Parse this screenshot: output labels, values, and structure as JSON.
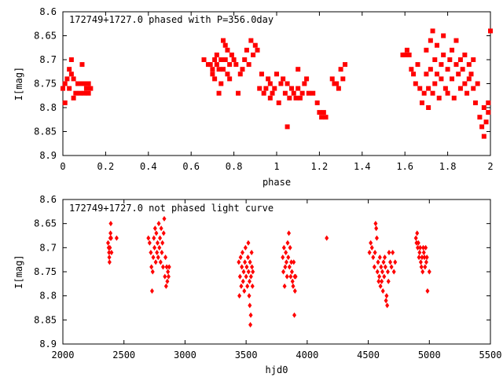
{
  "chart_data": [
    {
      "type": "scatter",
      "title": "172749+1727.0 phased with P=356.0day",
      "xlabel": "phase",
      "ylabel": "I[mag]",
      "xlim": [
        0,
        2
      ],
      "ylim": [
        8.6,
        8.9
      ],
      "y_inverted": true,
      "xticks": [
        0,
        0.2,
        0.4,
        0.6,
        0.8,
        1,
        1.2,
        1.4,
        1.6,
        1.8,
        2
      ],
      "xtick_labels": [
        "0",
        "0.2",
        "0.4",
        "0.6",
        "0.8",
        "1",
        "1.2",
        "1.4",
        "1.6",
        "1.8",
        "2"
      ],
      "yticks": [
        8.6,
        8.65,
        8.7,
        8.75,
        8.8,
        8.85,
        8.9
      ],
      "ytick_labels": [
        "8.6",
        "8.65",
        "8.7",
        "8.75",
        "8.8",
        "8.85",
        "8.9"
      ],
      "marker_color": "#ff0000",
      "marker": "filled-square",
      "points": [
        [
          0.0,
          8.76
        ],
        [
          0.01,
          8.79
        ],
        [
          0.01,
          8.75
        ],
        [
          0.02,
          8.74
        ],
        [
          0.03,
          8.72
        ],
        [
          0.03,
          8.76
        ],
        [
          0.04,
          8.73
        ],
        [
          0.04,
          8.7
        ],
        [
          0.05,
          8.74
        ],
        [
          0.05,
          8.78
        ],
        [
          0.06,
          8.77
        ],
        [
          0.07,
          8.75
        ],
        [
          0.08,
          8.77
        ],
        [
          0.09,
          8.75
        ],
        [
          0.09,
          8.71
        ],
        [
          0.1,
          8.77
        ],
        [
          0.1,
          8.75
        ],
        [
          0.11,
          8.76
        ],
        [
          0.12,
          8.75
        ],
        [
          0.12,
          8.77
        ],
        [
          0.13,
          8.76
        ],
        [
          0.66,
          8.7
        ],
        [
          0.68,
          8.71
        ],
        [
          0.69,
          8.71
        ],
        [
          0.7,
          8.72
        ],
        [
          0.7,
          8.73
        ],
        [
          0.71,
          8.7
        ],
        [
          0.71,
          8.74
        ],
        [
          0.72,
          8.71
        ],
        [
          0.72,
          8.69
        ],
        [
          0.73,
          8.72
        ],
        [
          0.73,
          8.77
        ],
        [
          0.74,
          8.7
        ],
        [
          0.74,
          8.75
        ],
        [
          0.75,
          8.66
        ],
        [
          0.75,
          8.72
        ],
        [
          0.76,
          8.7
        ],
        [
          0.76,
          8.67
        ],
        [
          0.77,
          8.73
        ],
        [
          0.77,
          8.68
        ],
        [
          0.78,
          8.71
        ],
        [
          0.78,
          8.74
        ],
        [
          0.79,
          8.69
        ],
        [
          0.8,
          8.7
        ],
        [
          0.81,
          8.71
        ],
        [
          0.82,
          8.77
        ],
        [
          0.83,
          8.73
        ],
        [
          0.84,
          8.72
        ],
        [
          0.85,
          8.7
        ],
        [
          0.86,
          8.68
        ],
        [
          0.87,
          8.71
        ],
        [
          0.88,
          8.66
        ],
        [
          0.89,
          8.69
        ],
        [
          0.9,
          8.67
        ],
        [
          0.91,
          8.68
        ],
        [
          0.92,
          8.76
        ],
        [
          0.93,
          8.73
        ],
        [
          0.94,
          8.77
        ],
        [
          0.95,
          8.76
        ],
        [
          0.96,
          8.74
        ],
        [
          0.97,
          8.78
        ],
        [
          0.97,
          8.75
        ],
        [
          0.98,
          8.77
        ],
        [
          0.99,
          8.76
        ],
        [
          1.0,
          8.73
        ],
        [
          1.01,
          8.79
        ],
        [
          1.02,
          8.75
        ],
        [
          1.03,
          8.74
        ],
        [
          1.04,
          8.77
        ],
        [
          1.05,
          8.75
        ],
        [
          1.05,
          8.84
        ],
        [
          1.06,
          8.78
        ],
        [
          1.07,
          8.76
        ],
        [
          1.08,
          8.77
        ],
        [
          1.09,
          8.78
        ],
        [
          1.1,
          8.76
        ],
        [
          1.1,
          8.72
        ],
        [
          1.11,
          8.78
        ],
        [
          1.12,
          8.77
        ],
        [
          1.13,
          8.75
        ],
        [
          1.14,
          8.74
        ],
        [
          1.15,
          8.77
        ],
        [
          1.17,
          8.77
        ],
        [
          1.19,
          8.79
        ],
        [
          1.2,
          8.81
        ],
        [
          1.21,
          8.82
        ],
        [
          1.22,
          8.81
        ],
        [
          1.23,
          8.82
        ],
        [
          1.26,
          8.74
        ],
        [
          1.27,
          8.75
        ],
        [
          1.28,
          8.75
        ],
        [
          1.29,
          8.76
        ],
        [
          1.3,
          8.72
        ],
        [
          1.31,
          8.74
        ],
        [
          1.32,
          8.71
        ],
        [
          1.59,
          8.69
        ],
        [
          1.6,
          8.69
        ],
        [
          1.61,
          8.68
        ],
        [
          1.62,
          8.69
        ],
        [
          1.63,
          8.72
        ],
        [
          1.64,
          8.73
        ],
        [
          1.65,
          8.75
        ],
        [
          1.66,
          8.71
        ],
        [
          1.67,
          8.76
        ],
        [
          1.68,
          8.79
        ],
        [
          1.69,
          8.77
        ],
        [
          1.7,
          8.73
        ],
        [
          1.7,
          8.68
        ],
        [
          1.71,
          8.76
        ],
        [
          1.71,
          8.8
        ],
        [
          1.72,
          8.72
        ],
        [
          1.72,
          8.66
        ],
        [
          1.73,
          8.77
        ],
        [
          1.73,
          8.64
        ],
        [
          1.74,
          8.7
        ],
        [
          1.74,
          8.75
        ],
        [
          1.75,
          8.73
        ],
        [
          1.75,
          8.67
        ],
        [
          1.76,
          8.78
        ],
        [
          1.77,
          8.71
        ],
        [
          1.77,
          8.74
        ],
        [
          1.78,
          8.65
        ],
        [
          1.78,
          8.69
        ],
        [
          1.79,
          8.76
        ],
        [
          1.8,
          8.72
        ],
        [
          1.8,
          8.77
        ],
        [
          1.81,
          8.7
        ],
        [
          1.82,
          8.74
        ],
        [
          1.82,
          8.68
        ],
        [
          1.83,
          8.78
        ],
        [
          1.84,
          8.71
        ],
        [
          1.84,
          8.66
        ],
        [
          1.85,
          8.73
        ],
        [
          1.86,
          8.76
        ],
        [
          1.86,
          8.7
        ],
        [
          1.87,
          8.72
        ],
        [
          1.88,
          8.75
        ],
        [
          1.88,
          8.69
        ],
        [
          1.89,
          8.77
        ],
        [
          1.9,
          8.71
        ],
        [
          1.9,
          8.74
        ],
        [
          1.91,
          8.73
        ],
        [
          1.92,
          8.76
        ],
        [
          1.92,
          8.7
        ],
        [
          1.93,
          8.79
        ],
        [
          1.94,
          8.75
        ],
        [
          1.95,
          8.82
        ],
        [
          1.96,
          8.84
        ],
        [
          1.97,
          8.86
        ],
        [
          1.97,
          8.8
        ],
        [
          1.98,
          8.83
        ],
        [
          1.99,
          8.81
        ],
        [
          1.99,
          8.79
        ],
        [
          2.0,
          8.64
        ]
      ]
    },
    {
      "type": "scatter",
      "title": "172749+1727.0 not phased light curve",
      "xlabel": "hjd0",
      "ylabel": "I[mag]",
      "xlim": [
        2000,
        5500
      ],
      "ylim": [
        8.6,
        8.9
      ],
      "y_inverted": true,
      "xticks": [
        2000,
        2500,
        3000,
        3500,
        4000,
        4500,
        5000,
        5500
      ],
      "xtick_labels": [
        "2000",
        "2500",
        "3000",
        "3500",
        "4000",
        "4500",
        "5000",
        "5500"
      ],
      "yticks": [
        8.6,
        8.65,
        8.7,
        8.75,
        8.8,
        8.85,
        8.9
      ],
      "ytick_labels": [
        "8.6",
        "8.65",
        "8.7",
        "8.75",
        "8.8",
        "8.85",
        "8.9"
      ],
      "marker_color": "#ff0000",
      "marker": "filled-diamond",
      "points": [
        [
          2370,
          8.69
        ],
        [
          2375,
          8.7
        ],
        [
          2378,
          8.71
        ],
        [
          2380,
          8.72
        ],
        [
          2382,
          8.73
        ],
        [
          2385,
          8.7
        ],
        [
          2388,
          8.68
        ],
        [
          2390,
          8.67
        ],
        [
          2392,
          8.65
        ],
        [
          2395,
          8.68
        ],
        [
          2398,
          8.71
        ],
        [
          2440,
          8.68
        ],
        [
          2700,
          8.68
        ],
        [
          2710,
          8.69
        ],
        [
          2720,
          8.71
        ],
        [
          2725,
          8.74
        ],
        [
          2730,
          8.79
        ],
        [
          2735,
          8.75
        ],
        [
          2740,
          8.72
        ],
        [
          2745,
          8.68
        ],
        [
          2750,
          8.7
        ],
        [
          2755,
          8.66
        ],
        [
          2760,
          8.73
        ],
        [
          2765,
          8.67
        ],
        [
          2770,
          8.71
        ],
        [
          2775,
          8.69
        ],
        [
          2780,
          8.72
        ],
        [
          2785,
          8.65
        ],
        [
          2790,
          8.7
        ],
        [
          2795,
          8.68
        ],
        [
          2800,
          8.73
        ],
        [
          2805,
          8.66
        ],
        [
          2810,
          8.71
        ],
        [
          2815,
          8.69
        ],
        [
          2820,
          8.74
        ],
        [
          2825,
          8.67
        ],
        [
          2830,
          8.64
        ],
        [
          2835,
          8.76
        ],
        [
          2840,
          8.72
        ],
        [
          2845,
          8.78
        ],
        [
          2850,
          8.74
        ],
        [
          2855,
          8.77
        ],
        [
          2860,
          8.75
        ],
        [
          2865,
          8.76
        ],
        [
          2870,
          8.74
        ],
        [
          3440,
          8.73
        ],
        [
          3445,
          8.8
        ],
        [
          3450,
          8.76
        ],
        [
          3455,
          8.72
        ],
        [
          3460,
          8.78
        ],
        [
          3465,
          8.74
        ],
        [
          3470,
          8.71
        ],
        [
          3475,
          8.77
        ],
        [
          3480,
          8.75
        ],
        [
          3485,
          8.79
        ],
        [
          3490,
          8.73
        ],
        [
          3495,
          8.7
        ],
        [
          3500,
          8.76
        ],
        [
          3505,
          8.74
        ],
        [
          3510,
          8.78
        ],
        [
          3515,
          8.72
        ],
        [
          3518,
          8.69
        ],
        [
          3520,
          8.75
        ],
        [
          3525,
          8.8
        ],
        [
          3528,
          8.77
        ],
        [
          3530,
          8.82
        ],
        [
          3532,
          8.73
        ],
        [
          3535,
          8.86
        ],
        [
          3538,
          8.84
        ],
        [
          3540,
          8.76
        ],
        [
          3545,
          8.71
        ],
        [
          3548,
          8.74
        ],
        [
          3552,
          8.78
        ],
        [
          3555,
          8.75
        ],
        [
          3800,
          8.72
        ],
        [
          3805,
          8.75
        ],
        [
          3810,
          8.7
        ],
        [
          3815,
          8.78
        ],
        [
          3820,
          8.74
        ],
        [
          3825,
          8.71
        ],
        [
          3830,
          8.73
        ],
        [
          3835,
          8.76
        ],
        [
          3840,
          8.69
        ],
        [
          3845,
          8.72
        ],
        [
          3850,
          8.67
        ],
        [
          3855,
          8.74
        ],
        [
          3860,
          8.7
        ],
        [
          3865,
          8.76
        ],
        [
          3870,
          8.73
        ],
        [
          3875,
          8.75
        ],
        [
          3880,
          8.77
        ],
        [
          3885,
          8.78
        ],
        [
          3890,
          8.73
        ],
        [
          3895,
          8.84
        ],
        [
          3898,
          8.76
        ],
        [
          3900,
          8.79
        ],
        [
          3905,
          8.76
        ],
        [
          4160,
          8.68
        ],
        [
          4510,
          8.71
        ],
        [
          4520,
          8.69
        ],
        [
          4530,
          8.7
        ],
        [
          4540,
          8.72
        ],
        [
          4550,
          8.74
        ],
        [
          4555,
          8.71
        ],
        [
          4560,
          8.65
        ],
        [
          4565,
          8.66
        ],
        [
          4570,
          8.68
        ],
        [
          4575,
          8.75
        ],
        [
          4580,
          8.73
        ],
        [
          4585,
          8.77
        ],
        [
          4590,
          8.76
        ],
        [
          4595,
          8.72
        ],
        [
          4600,
          8.78
        ],
        [
          4605,
          8.74
        ],
        [
          4610,
          8.77
        ],
        [
          4615,
          8.75
        ],
        [
          4620,
          8.79
        ],
        [
          4625,
          8.73
        ],
        [
          4630,
          8.76
        ],
        [
          4635,
          8.72
        ],
        [
          4640,
          8.74
        ],
        [
          4645,
          8.81
        ],
        [
          4650,
          8.8
        ],
        [
          4655,
          8.82
        ],
        [
          4660,
          8.75
        ],
        [
          4665,
          8.77
        ],
        [
          4670,
          8.71
        ],
        [
          4680,
          8.73
        ],
        [
          4690,
          8.74
        ],
        [
          4700,
          8.71
        ],
        [
          4710,
          8.75
        ],
        [
          4720,
          8.73
        ],
        [
          4890,
          8.68
        ],
        [
          4895,
          8.69
        ],
        [
          4900,
          8.67
        ],
        [
          4905,
          8.7
        ],
        [
          4910,
          8.69
        ],
        [
          4915,
          8.72
        ],
        [
          4920,
          8.71
        ],
        [
          4925,
          8.7
        ],
        [
          4930,
          8.73
        ],
        [
          4935,
          8.74
        ],
        [
          4940,
          8.72
        ],
        [
          4945,
          8.75
        ],
        [
          4950,
          8.7
        ],
        [
          4955,
          8.71
        ],
        [
          4960,
          8.72
        ],
        [
          4965,
          8.74
        ],
        [
          4970,
          8.7
        ],
        [
          4975,
          8.73
        ],
        [
          4980,
          8.72
        ],
        [
          4985,
          8.79
        ],
        [
          5000,
          8.75
        ]
      ]
    }
  ]
}
